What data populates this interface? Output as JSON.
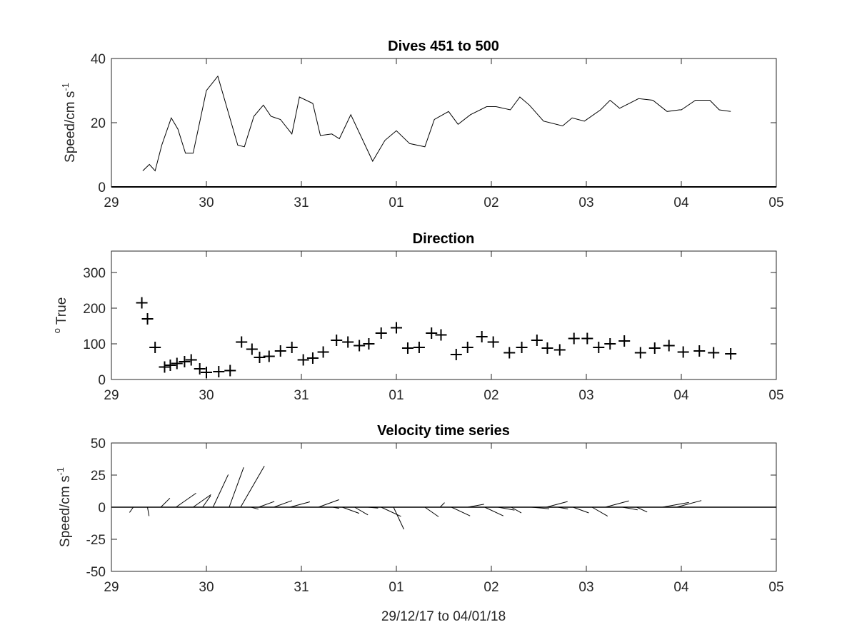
{
  "chart_data": [
    {
      "type": "line",
      "title": "Dives 451 to 500",
      "ylabel": "Speed/cm s",
      "ylabel_exponent": "-1",
      "xlabel": "",
      "xlim": [
        29,
        36
      ],
      "ylim": [
        0,
        40
      ],
      "x_tick_labels": [
        "29",
        "30",
        "31",
        "01",
        "02",
        "03",
        "04",
        "05"
      ],
      "y_ticks": [
        0,
        20,
        40
      ],
      "line_color": "#000000",
      "x": [
        29.33,
        29.4,
        29.46,
        29.53,
        29.63,
        29.7,
        29.78,
        29.86,
        30.0,
        30.12,
        30.33,
        30.4,
        30.5,
        30.6,
        30.68,
        30.78,
        30.9,
        30.98,
        31.12,
        31.2,
        31.32,
        31.4,
        31.52,
        31.75,
        31.88,
        32.0,
        32.14,
        32.3,
        32.4,
        32.55,
        32.65,
        32.78,
        32.95,
        33.05,
        33.2,
        33.3,
        33.4,
        33.55,
        33.75,
        33.85,
        33.98,
        34.15,
        34.25,
        34.35,
        34.55,
        34.7,
        34.85,
        34.98,
        35.0,
        35.15,
        35.3,
        35.4,
        35.52
      ],
      "y": [
        5,
        7,
        5,
        13,
        21.5,
        18,
        10.5,
        10.5,
        30,
        34.5,
        13,
        12.5,
        22,
        25.5,
        22,
        21,
        16.5,
        28,
        26,
        16,
        16.5,
        15,
        22.5,
        8,
        14.5,
        17.5,
        13.5,
        12.5,
        21,
        23.5,
        19.5,
        22.5,
        25,
        25,
        24,
        28,
        25.5,
        20.5,
        19,
        21.5,
        20.5,
        24,
        27,
        24.5,
        27.5,
        27,
        23.5,
        24,
        24,
        27,
        27,
        24,
        23.5
      ]
    },
    {
      "type": "scatter",
      "title": "Direction",
      "ylabel": "True",
      "ylabel_superscript": "o",
      "xlabel": "",
      "xlim": [
        29,
        36
      ],
      "ylim": [
        0,
        360
      ],
      "x_tick_labels": [
        "29",
        "30",
        "31",
        "01",
        "02",
        "03",
        "04",
        "05"
      ],
      "y_ticks": [
        0,
        100,
        200,
        300
      ],
      "marker": "+",
      "marker_color": "#000000",
      "x": [
        29.32,
        29.38,
        29.46,
        29.56,
        29.62,
        29.69,
        29.77,
        29.84,
        29.93,
        30.0,
        30.13,
        30.25,
        30.37,
        30.48,
        30.56,
        30.66,
        30.78,
        30.9,
        31.02,
        31.12,
        31.23,
        31.37,
        31.49,
        31.61,
        31.71,
        31.84,
        32.0,
        32.12,
        32.24,
        32.37,
        32.47,
        32.63,
        32.75,
        32.9,
        33.02,
        33.19,
        33.32,
        33.48,
        33.59,
        33.72,
        33.87,
        34.01,
        34.13,
        34.25,
        34.4,
        34.57,
        34.72,
        34.87,
        35.02,
        35.19,
        35.34,
        35.52
      ],
      "y": [
        215,
        170,
        90,
        35,
        40,
        45,
        50,
        55,
        30,
        20,
        22,
        25,
        105,
        85,
        62,
        65,
        80,
        90,
        55,
        60,
        77,
        110,
        105,
        95,
        100,
        130,
        145,
        88,
        90,
        130,
        125,
        70,
        90,
        120,
        105,
        75,
        90,
        110,
        88,
        83,
        115,
        115,
        90,
        100,
        108,
        75,
        88,
        95,
        77,
        80,
        75,
        72
      ]
    },
    {
      "type": "vector",
      "title": "Velocity time series",
      "ylabel": "Speed/cm s",
      "ylabel_exponent": "-1",
      "xlabel": "29/12/17 to 04/01/18",
      "xlim": [
        29,
        36
      ],
      "ylim": [
        -50,
        50
      ],
      "x_tick_labels": [
        "29",
        "30",
        "31",
        "01",
        "02",
        "03",
        "04",
        "05"
      ],
      "y_tick_labels": [
        "50",
        "25",
        "0",
        "-25",
        "-50"
      ],
      "y_ticks": [
        50,
        25,
        0,
        -25,
        -50
      ],
      "line_color": "#000000",
      "x": [
        29.23,
        29.38,
        29.52,
        29.68,
        29.86,
        29.96,
        30.07,
        30.24,
        30.36,
        30.47,
        30.55,
        30.71,
        30.88,
        31.03,
        31.18,
        31.33,
        31.43,
        31.56,
        31.7,
        31.84,
        31.97,
        32.05,
        32.3,
        32.46,
        32.58,
        32.75,
        32.93,
        33.07,
        33.21,
        33.42,
        33.58,
        33.7,
        33.86,
        34.06,
        34.2,
        34.38,
        34.53,
        34.8,
        34.95
      ],
      "speed": [
        5,
        7,
        10,
        19,
        17,
        11,
        28,
        33,
        37,
        6,
        13,
        15,
        16,
        14,
        17,
        5,
        14,
        12,
        8,
        17,
        19,
        15,
        13,
        5,
        16,
        13,
        16,
        13,
        9,
        14,
        17,
        8,
        13,
        14,
        19,
        12,
        9,
        21,
        20
      ],
      "direction_deg": [
        215,
        170,
        45,
        55,
        55,
        35,
        25,
        20,
        30,
        105,
        70,
        70,
        75,
        90,
        70,
        100,
        110,
        120,
        95,
        115,
        155,
        90,
        125,
        45,
        115,
        80,
        115,
        100,
        120,
        95,
        75,
        100,
        110,
        120,
        75,
        100,
        115,
        80,
        75
      ]
    }
  ]
}
